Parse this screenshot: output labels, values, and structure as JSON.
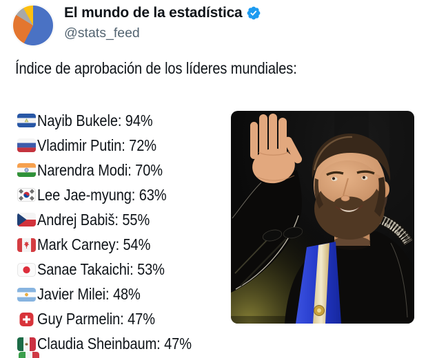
{
  "colors": {
    "text_primary": "#0f1419",
    "text_secondary": "#536471",
    "verified_blue": "#1d9bf0",
    "background": "#ffffff"
  },
  "header": {
    "display_name": "El mundo de la estadística",
    "handle": "@stats_feed",
    "verified": true,
    "avatar": {
      "type": "pie-chart-image",
      "slices": [
        {
          "color": "#4a72c4",
          "from_deg": 0,
          "to_deg": 207
        },
        {
          "color": "#e3762f",
          "from_deg": 207,
          "to_deg": 302
        },
        {
          "color": "#a8a8a8",
          "from_deg": 302,
          "to_deg": 331
        },
        {
          "color": "#fdc010",
          "from_deg": 331,
          "to_deg": 360
        }
      ]
    }
  },
  "tweet": {
    "text": "Índice de aprobación de los líderes mundiales:"
  },
  "leaders": [
    {
      "flag": "el-salvador",
      "country": "El Salvador",
      "name": "Nayib Bukele",
      "approval_pct": 94,
      "display": "Nayib Bukele: 94%"
    },
    {
      "flag": "russia",
      "country": "Russia",
      "name": "Vladimir Putin",
      "approval_pct": 72,
      "display": "Vladimir Putin: 72%"
    },
    {
      "flag": "india",
      "country": "India",
      "name": "Narendra Modi",
      "approval_pct": 70,
      "display": "Narendra Modi: 70%"
    },
    {
      "flag": "south-korea",
      "country": "South Korea",
      "name": "Lee Jae-myung",
      "approval_pct": 63,
      "display": "Lee Jae-myung: 63%"
    },
    {
      "flag": "czechia",
      "country": "Czech Republic",
      "name": "Andrej Babiš",
      "approval_pct": 55,
      "display": "Andrej Babiš: 55%"
    },
    {
      "flag": "canada",
      "country": "Canada",
      "name": "Mark Carney",
      "approval_pct": 54,
      "display": "Mark Carney: 54%"
    },
    {
      "flag": "japan",
      "country": "Japan",
      "name": "Sanae Takaichi",
      "approval_pct": 53,
      "display": "Sanae Takaichi: 53%"
    },
    {
      "flag": "argentina",
      "country": "Argentina",
      "name": "Javier Milei",
      "approval_pct": 48,
      "display": "Javier Milei: 48%"
    },
    {
      "flag": "switzerland",
      "country": "Switzerland",
      "name": "Guy Parmelin",
      "approval_pct": 47,
      "display": "Guy Parmelin: 47%"
    },
    {
      "flag": "mexico",
      "country": "Mexico",
      "name": "Claudia Sheinbaum",
      "approval_pct": 47,
      "display": "Claudia Sheinbaum: 47%"
    }
  ],
  "partial_next_row": {
    "flag": "italy",
    "country": "Italy",
    "note": "only top sliver of flag visible at bottom edge"
  },
  "photo": {
    "subject": "bearded man in black suit with blue presidential sash waving with raised open hand",
    "colors": {
      "background": "#0a0a0a",
      "sash_blue": "#2338c8",
      "sash_stripe": "#f2e9cd",
      "skin": "#d9a077",
      "glow_olive": "#8d8638"
    }
  }
}
